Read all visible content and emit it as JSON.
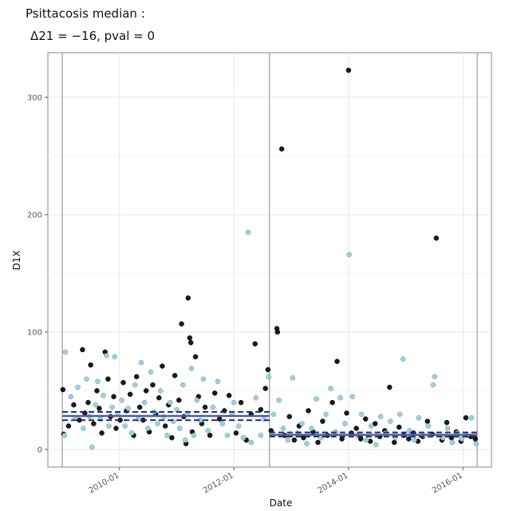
{
  "title": {
    "line1": "Psittacosis  median :",
    "line2": "Δ21 = −16, pval = 0"
  },
  "chart_data": {
    "type": "scatter",
    "xlabel": "Date",
    "ylabel": "D1X",
    "x_ticks": [
      "2010-01",
      "2012-01",
      "2014-01",
      "2016-01"
    ],
    "y_ticks": [
      0,
      100,
      200,
      300
    ],
    "ylim": [
      -15,
      338
    ],
    "xlim": [
      "2008-10-01",
      "2016-07-01"
    ],
    "grid": true,
    "changepoints": [
      "2009-01-01",
      "2012-08-15",
      "2016-04-01"
    ],
    "series": [
      {
        "color": "#1a1a1a",
        "points": [
          {
            "x": "2009-01-05",
            "y": 51
          },
          {
            "x": "2009-01-10",
            "y": 13
          },
          {
            "x": "2009-02-10",
            "y": 20
          },
          {
            "x": "2009-03-15",
            "y": 38
          },
          {
            "x": "2009-04-20",
            "y": 25
          },
          {
            "x": "2009-05-10",
            "y": 85
          },
          {
            "x": "2009-05-25",
            "y": 31
          },
          {
            "x": "2009-06-15",
            "y": 40
          },
          {
            "x": "2009-07-01",
            "y": 72
          },
          {
            "x": "2009-07-20",
            "y": 22
          },
          {
            "x": "2009-08-10",
            "y": 50
          },
          {
            "x": "2009-08-25",
            "y": 35
          },
          {
            "x": "2009-09-10",
            "y": 14
          },
          {
            "x": "2009-10-01",
            "y": 83
          },
          {
            "x": "2009-10-20",
            "y": 60
          },
          {
            "x": "2009-11-05",
            "y": 28
          },
          {
            "x": "2009-11-25",
            "y": 45
          },
          {
            "x": "2009-12-10",
            "y": 18
          },
          {
            "x": "2010-01-05",
            "y": 25
          },
          {
            "x": "2010-01-25",
            "y": 57
          },
          {
            "x": "2010-02-15",
            "y": 33
          },
          {
            "x": "2010-03-10",
            "y": 47
          },
          {
            "x": "2010-04-01",
            "y": 12
          },
          {
            "x": "2010-04-20",
            "y": 62
          },
          {
            "x": "2010-05-10",
            "y": 36
          },
          {
            "x": "2010-06-01",
            "y": 25
          },
          {
            "x": "2010-06-20",
            "y": 50
          },
          {
            "x": "2010-07-10",
            "y": 15
          },
          {
            "x": "2010-08-01",
            "y": 55
          },
          {
            "x": "2010-08-20",
            "y": 30
          },
          {
            "x": "2010-09-10",
            "y": 44
          },
          {
            "x": "2010-10-01",
            "y": 71
          },
          {
            "x": "2010-10-20",
            "y": 20
          },
          {
            "x": "2010-11-10",
            "y": 38
          },
          {
            "x": "2010-12-01",
            "y": 10
          },
          {
            "x": "2010-12-20",
            "y": 63
          },
          {
            "x": "2011-01-15",
            "y": 42
          },
          {
            "x": "2011-02-01",
            "y": 107
          },
          {
            "x": "2011-02-15",
            "y": 28
          },
          {
            "x": "2011-03-01",
            "y": 5
          },
          {
            "x": "2011-03-15",
            "y": 129
          },
          {
            "x": "2011-03-25",
            "y": 95
          },
          {
            "x": "2011-04-01",
            "y": 91
          },
          {
            "x": "2011-04-10",
            "y": 15
          },
          {
            "x": "2011-05-01",
            "y": 79
          },
          {
            "x": "2011-05-20",
            "y": 45
          },
          {
            "x": "2011-06-10",
            "y": 22
          },
          {
            "x": "2011-07-01",
            "y": 36
          },
          {
            "x": "2011-08-01",
            "y": 12
          },
          {
            "x": "2011-09-01",
            "y": 48
          },
          {
            "x": "2011-10-01",
            "y": 26
          },
          {
            "x": "2011-11-01",
            "y": 33
          },
          {
            "x": "2011-12-01",
            "y": 46
          },
          {
            "x": "2012-01-15",
            "y": 14
          },
          {
            "x": "2012-02-15",
            "y": 40
          },
          {
            "x": "2012-03-20",
            "y": 8
          },
          {
            "x": "2012-04-20",
            "y": 30
          },
          {
            "x": "2012-05-15",
            "y": 90
          },
          {
            "x": "2012-06-20",
            "y": 34
          },
          {
            "x": "2012-07-20",
            "y": 52
          },
          {
            "x": "2012-08-05",
            "y": 68
          },
          {
            "x": "2012-08-25",
            "y": 16
          },
          {
            "x": "2012-10-01",
            "y": 103
          },
          {
            "x": "2012-10-05",
            "y": 100
          },
          {
            "x": "2012-11-01",
            "y": 256
          },
          {
            "x": "2012-11-20",
            "y": 12
          },
          {
            "x": "2012-12-20",
            "y": 28
          },
          {
            "x": "2013-01-20",
            "y": 8
          },
          {
            "x": "2013-02-20",
            "y": 20
          },
          {
            "x": "2013-03-20",
            "y": 10
          },
          {
            "x": "2013-04-20",
            "y": 33
          },
          {
            "x": "2013-05-20",
            "y": 15
          },
          {
            "x": "2013-06-20",
            "y": 6
          },
          {
            "x": "2013-07-20",
            "y": 24
          },
          {
            "x": "2013-08-20",
            "y": 12
          },
          {
            "x": "2013-09-20",
            "y": 40
          },
          {
            "x": "2013-10-20",
            "y": 75
          },
          {
            "x": "2013-11-20",
            "y": 9
          },
          {
            "x": "2013-12-20",
            "y": 31
          },
          {
            "x": "2014-01-01",
            "y": 323
          },
          {
            "x": "2014-01-20",
            "y": 14
          },
          {
            "x": "2014-02-20",
            "y": 18
          },
          {
            "x": "2014-03-20",
            "y": 9
          },
          {
            "x": "2014-04-20",
            "y": 26
          },
          {
            "x": "2014-05-20",
            "y": 7
          },
          {
            "x": "2014-06-20",
            "y": 22
          },
          {
            "x": "2014-07-20",
            "y": 11
          },
          {
            "x": "2014-08-20",
            "y": 16
          },
          {
            "x": "2014-09-20",
            "y": 53
          },
          {
            "x": "2014-10-20",
            "y": 6
          },
          {
            "x": "2014-11-20",
            "y": 19
          },
          {
            "x": "2014-12-20",
            "y": 12
          },
          {
            "x": "2015-01-20",
            "y": 9
          },
          {
            "x": "2015-02-20",
            "y": 14
          },
          {
            "x": "2015-03-20",
            "y": 7
          },
          {
            "x": "2015-04-20",
            "y": 11
          },
          {
            "x": "2015-05-20",
            "y": 24
          },
          {
            "x": "2015-06-20",
            "y": 13
          },
          {
            "x": "2015-07-15",
            "y": 180
          },
          {
            "x": "2015-08-20",
            "y": 8
          },
          {
            "x": "2015-09-20",
            "y": 23
          },
          {
            "x": "2015-10-20",
            "y": 10
          },
          {
            "x": "2015-11-20",
            "y": 15
          },
          {
            "x": "2015-12-20",
            "y": 7
          },
          {
            "x": "2016-01-20",
            "y": 27
          },
          {
            "x": "2016-02-20",
            "y": 11
          },
          {
            "x": "2016-03-20",
            "y": 9
          }
        ]
      },
      {
        "color": "#9ecfe0",
        "points": [
          {
            "x": "2009-01-20",
            "y": 83
          },
          {
            "x": "2009-01-15",
            "y": 12
          },
          {
            "x": "2009-02-25",
            "y": 45
          },
          {
            "x": "2009-03-25",
            "y": 27
          },
          {
            "x": "2009-04-10",
            "y": 53
          },
          {
            "x": "2009-05-15",
            "y": 18
          },
          {
            "x": "2009-06-05",
            "y": 60
          },
          {
            "x": "2009-06-25",
            "y": 28
          },
          {
            "x": "2009-07-10",
            "y": 2
          },
          {
            "x": "2009-08-01",
            "y": 38
          },
          {
            "x": "2009-08-15",
            "y": 58
          },
          {
            "x": "2009-09-01",
            "y": 26
          },
          {
            "x": "2009-09-20",
            "y": 46
          },
          {
            "x": "2009-10-10",
            "y": 80
          },
          {
            "x": "2009-10-25",
            "y": 20
          },
          {
            "x": "2009-11-15",
            "y": 36
          },
          {
            "x": "2009-12-01",
            "y": 79
          },
          {
            "x": "2009-12-20",
            "y": 30
          },
          {
            "x": "2010-01-15",
            "y": 42
          },
          {
            "x": "2010-02-05",
            "y": 20
          },
          {
            "x": "2010-02-25",
            "y": 35
          },
          {
            "x": "2010-03-20",
            "y": 14
          },
          {
            "x": "2010-04-10",
            "y": 55
          },
          {
            "x": "2010-05-01",
            "y": 26
          },
          {
            "x": "2010-05-20",
            "y": 74
          },
          {
            "x": "2010-06-10",
            "y": 40
          },
          {
            "x": "2010-07-01",
            "y": 18
          },
          {
            "x": "2010-07-20",
            "y": 66
          },
          {
            "x": "2010-08-10",
            "y": 32
          },
          {
            "x": "2010-09-01",
            "y": 22
          },
          {
            "x": "2010-09-20",
            "y": 50
          },
          {
            "x": "2010-10-10",
            "y": 28
          },
          {
            "x": "2010-11-01",
            "y": 12
          },
          {
            "x": "2010-11-20",
            "y": 40
          },
          {
            "x": "2010-12-10",
            "y": 24
          },
          {
            "x": "2011-01-01",
            "y": 34
          },
          {
            "x": "2011-01-20",
            "y": 18
          },
          {
            "x": "2011-02-10",
            "y": 55
          },
          {
            "x": "2011-02-25",
            "y": 8
          },
          {
            "x": "2011-03-10",
            "y": 30
          },
          {
            "x": "2011-04-05",
            "y": 69
          },
          {
            "x": "2011-04-20",
            "y": 12
          },
          {
            "x": "2011-05-10",
            "y": 42
          },
          {
            "x": "2011-06-01",
            "y": 25
          },
          {
            "x": "2011-06-20",
            "y": 60
          },
          {
            "x": "2011-07-20",
            "y": 16
          },
          {
            "x": "2011-08-20",
            "y": 36
          },
          {
            "x": "2011-09-20",
            "y": 58
          },
          {
            "x": "2011-10-20",
            "y": 22
          },
          {
            "x": "2011-11-20",
            "y": 12
          },
          {
            "x": "2011-12-20",
            "y": 30
          },
          {
            "x": "2012-01-01",
            "y": 40
          },
          {
            "x": "2012-02-01",
            "y": 20
          },
          {
            "x": "2012-03-01",
            "y": 10
          },
          {
            "x": "2012-04-01",
            "y": 185
          },
          {
            "x": "2012-04-20",
            "y": 6
          },
          {
            "x": "2012-05-20",
            "y": 44
          },
          {
            "x": "2012-06-20",
            "y": 12
          },
          {
            "x": "2012-07-10",
            "y": 26
          },
          {
            "x": "2012-08-10",
            "y": 62
          },
          {
            "x": "2012-09-10",
            "y": 30
          },
          {
            "x": "2012-10-15",
            "y": 42
          },
          {
            "x": "2012-11-10",
            "y": 18
          },
          {
            "x": "2012-12-10",
            "y": 8
          },
          {
            "x": "2013-01-10",
            "y": 61
          },
          {
            "x": "2013-02-10",
            "y": 14
          },
          {
            "x": "2013-03-10",
            "y": 22
          },
          {
            "x": "2013-04-10",
            "y": 5
          },
          {
            "x": "2013-05-10",
            "y": 18
          },
          {
            "x": "2013-06-10",
            "y": 43
          },
          {
            "x": "2013-07-10",
            "y": 10
          },
          {
            "x": "2013-08-10",
            "y": 30
          },
          {
            "x": "2013-09-10",
            "y": 52
          },
          {
            "x": "2013-10-10",
            "y": 15
          },
          {
            "x": "2013-11-10",
            "y": 44
          },
          {
            "x": "2013-12-10",
            "y": 22
          },
          {
            "x": "2014-01-05",
            "y": 166
          },
          {
            "x": "2014-01-25",
            "y": 45
          },
          {
            "x": "2014-02-25",
            "y": 12
          },
          {
            "x": "2014-03-25",
            "y": 30
          },
          {
            "x": "2014-04-25",
            "y": 8
          },
          {
            "x": "2014-05-25",
            "y": 20
          },
          {
            "x": "2014-06-25",
            "y": 4
          },
          {
            "x": "2014-07-25",
            "y": 28
          },
          {
            "x": "2014-08-25",
            "y": 14
          },
          {
            "x": "2014-09-25",
            "y": 24
          },
          {
            "x": "2014-10-25",
            "y": 10
          },
          {
            "x": "2014-11-25",
            "y": 30
          },
          {
            "x": "2014-12-15",
            "y": 77
          },
          {
            "x": "2015-01-25",
            "y": 16
          },
          {
            "x": "2015-02-25",
            "y": 8
          },
          {
            "x": "2015-03-25",
            "y": 27
          },
          {
            "x": "2015-04-25",
            "y": 12
          },
          {
            "x": "2015-05-25",
            "y": 20
          },
          {
            "x": "2015-06-25",
            "y": 55
          },
          {
            "x": "2015-07-05",
            "y": 62
          },
          {
            "x": "2015-08-25",
            "y": 10
          },
          {
            "x": "2015-09-25",
            "y": 18
          },
          {
            "x": "2015-10-25",
            "y": 6
          },
          {
            "x": "2015-11-25",
            "y": 14
          },
          {
            "x": "2015-12-25",
            "y": 9
          },
          {
            "x": "2016-01-25",
            "y": 12
          },
          {
            "x": "2016-02-25",
            "y": 27
          },
          {
            "x": "2016-03-25",
            "y": 5
          }
        ]
      }
    ],
    "medians": [
      {
        "from": "2009-01-01",
        "to": "2012-08-15",
        "value": 28.5,
        "upper": 32,
        "lower": 25
      },
      {
        "from": "2012-08-15",
        "to": "2016-04-01",
        "value": 12.5,
        "upper": 14.5,
        "lower": 11
      }
    ],
    "colors": {
      "median_line": "#1f2a5a",
      "median_band": "#4a5aa8",
      "grid": "#e6e6e6",
      "frame": "#8a8a8a"
    }
  }
}
